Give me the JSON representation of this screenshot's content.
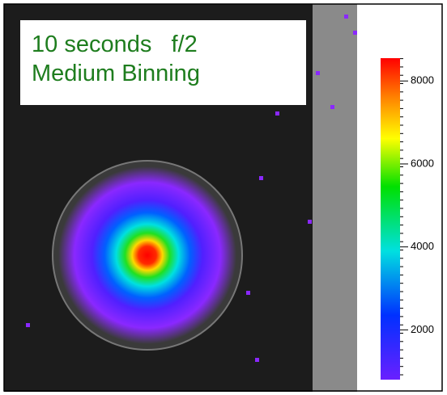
{
  "annotation": {
    "line1": "10 seconds   f/2",
    "line2": "Medium Binning"
  },
  "colorbar": {
    "lim": [
      800,
      8550
    ],
    "ticks": [
      2000,
      4000,
      6000,
      8000
    ]
  }
}
